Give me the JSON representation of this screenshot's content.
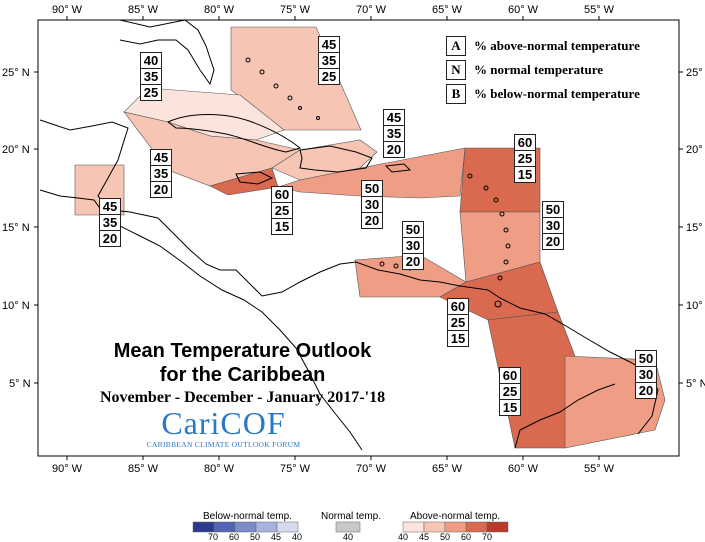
{
  "map": {
    "lon_labels": [
      "90° W",
      "85° W",
      "80° W",
      "75° W",
      "70° W",
      "65° W",
      "60° W",
      "55° W"
    ],
    "lat_labels": [
      "25° N",
      "20° N",
      "15° N",
      "10° N",
      "5° N"
    ],
    "colors": {
      "above_40": "#fbe4db",
      "above_45": "#f7c5b3",
      "above_50": "#ef9e85",
      "above_60": "#d9694f",
      "sea": "#ffffff",
      "land_outline": "#000000"
    },
    "legend_key": [
      {
        "key": "A",
        "label": "% above-normal temperature"
      },
      {
        "key": "N",
        "label": "% normal temperature"
      },
      {
        "key": "B",
        "label": "% below-normal temperature"
      }
    ],
    "regions": [
      {
        "id": "bahamas",
        "A": "45",
        "N": "35",
        "B": "25"
      },
      {
        "id": "cuba-west",
        "A": "40",
        "N": "35",
        "B": "25"
      },
      {
        "id": "cayman-cuba-east",
        "A": "45",
        "N": "35",
        "B": "20"
      },
      {
        "id": "belize",
        "A": "45",
        "N": "35",
        "B": "20"
      },
      {
        "id": "jamaica",
        "A": "60",
        "N": "25",
        "B": "15"
      },
      {
        "id": "hispaniola",
        "A": "45",
        "N": "35",
        "B": "20"
      },
      {
        "id": "puerto-rico",
        "A": "50",
        "N": "30",
        "B": "20"
      },
      {
        "id": "leeward-islands",
        "A": "60",
        "N": "25",
        "B": "15"
      },
      {
        "id": "windward-islands",
        "A": "50",
        "N": "30",
        "B": "20"
      },
      {
        "id": "abc-islands",
        "A": "50",
        "N": "30",
        "B": "20"
      },
      {
        "id": "trinidad",
        "A": "60",
        "N": "25",
        "B": "15"
      },
      {
        "id": "guyana",
        "A": "60",
        "N": "25",
        "B": "15"
      },
      {
        "id": "suriname-guiana",
        "A": "50",
        "N": "30",
        "B": "20"
      }
    ],
    "title_line1": "Mean Temperature Outlook",
    "title_line2": "for the Caribbean",
    "title_line3": "November - December - January 2017-'18",
    "logo_text": "CariCOF",
    "logo_subtext": "CARIBBEAN CLIMATE OUTLOOK FORUM"
  },
  "color_scale": {
    "below": {
      "title": "Below-normal temp.",
      "ticks": [
        "70",
        "60",
        "50",
        "45",
        "40"
      ],
      "colors": [
        "#2b3a8f",
        "#5264b3",
        "#7d8cc9",
        "#a8b3dd",
        "#d6dbf0"
      ]
    },
    "normal": {
      "title": "Normal temp.",
      "ticks": [
        "40"
      ],
      "colors": [
        "#c8c8c8"
      ]
    },
    "above": {
      "title": "Above-normal temp.",
      "ticks": [
        "40",
        "45",
        "50",
        "60",
        "70"
      ],
      "colors": [
        "#fbe4db",
        "#f7c5b3",
        "#ef9e85",
        "#d9694f",
        "#b93a2b"
      ]
    }
  }
}
